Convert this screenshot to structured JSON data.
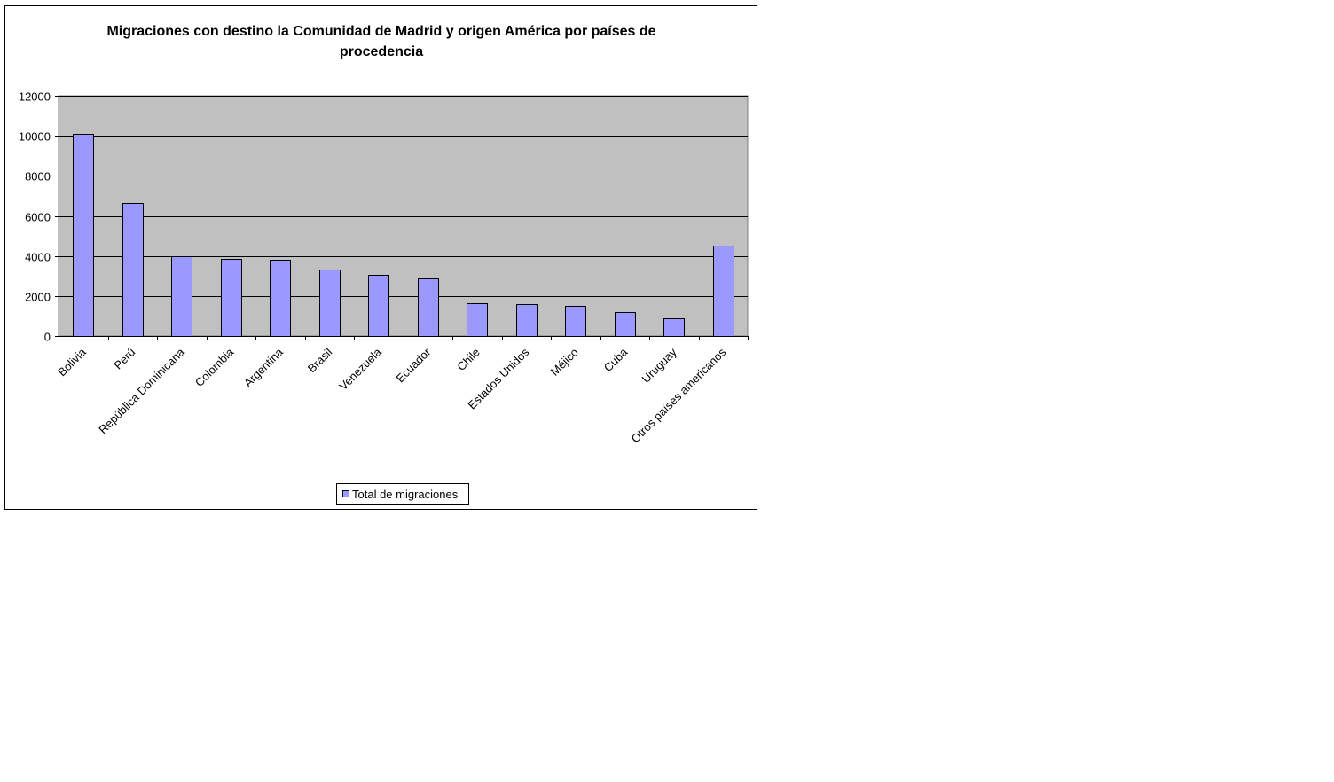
{
  "colors": {
    "plot_background": "#c0c0c0",
    "bar_fill": "#9999ff",
    "bar_stroke": "#000000",
    "gridline": "#000000",
    "axis": "#000000"
  },
  "chart_data": {
    "type": "bar",
    "title_lines": [
      "Migraciones con destino la Comunidad de Madrid y origen  América  por países de",
      "procedencia"
    ],
    "categories": [
      "Bolivia",
      "Perú",
      "República Dominicana",
      "Colombia",
      "Argentina",
      "Brasil",
      "Venezuela",
      "Ecuador",
      "Chile",
      "Estados Unidos",
      "Méjico",
      "Cuba",
      "Uruguay",
      "Otros países americanos"
    ],
    "series": [
      {
        "name": "Total de migraciones",
        "values": [
          10100,
          6650,
          4000,
          3870,
          3820,
          3330,
          3060,
          2880,
          1650,
          1600,
          1520,
          1210,
          880,
          4520
        ]
      }
    ],
    "ylim": [
      0,
      12000
    ],
    "yticks": [
      0,
      2000,
      4000,
      6000,
      8000,
      10000,
      12000
    ],
    "grid": true,
    "legend_position": "bottom"
  }
}
